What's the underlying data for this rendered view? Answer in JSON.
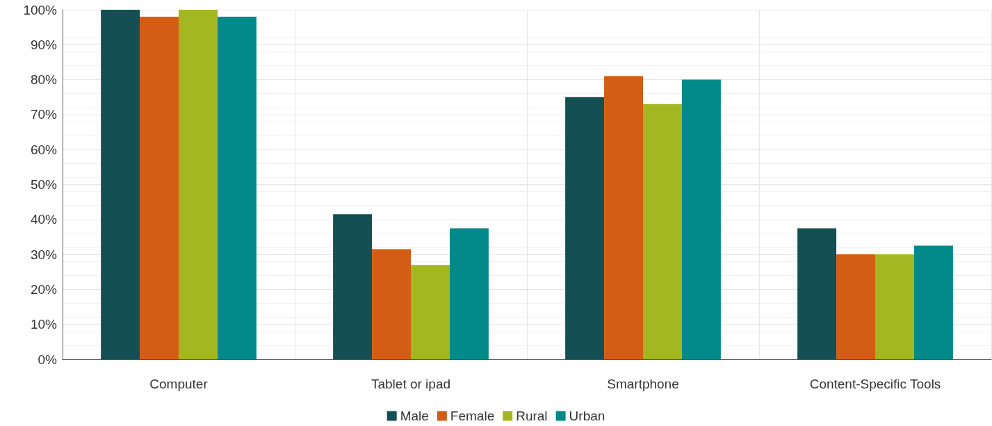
{
  "chart_data": {
    "type": "bar",
    "categories": [
      "Computer",
      "Tablet or ipad",
      "Smartphone",
      "Content-Specific Tools"
    ],
    "series": [
      {
        "name": "Male",
        "color": "#134f53",
        "values": [
          100,
          41.5,
          75,
          37.5
        ]
      },
      {
        "name": "Female",
        "color": "#d45d15",
        "values": [
          98,
          31.5,
          81,
          30
        ]
      },
      {
        "name": "Rural",
        "color": "#a2b721",
        "values": [
          100,
          27,
          73,
          30
        ]
      },
      {
        "name": "Urban",
        "color": "#028a8b",
        "values": [
          98,
          37.5,
          80,
          32.5
        ]
      }
    ],
    "ylim": [
      0,
      100
    ],
    "yticks": [
      {
        "value": 0,
        "label": "0%"
      },
      {
        "value": 10,
        "label": "10%"
      },
      {
        "value": 20,
        "label": "20%"
      },
      {
        "value": 30,
        "label": "30%"
      },
      {
        "value": 40,
        "label": "40%"
      },
      {
        "value": 50,
        "label": "50%"
      },
      {
        "value": 60,
        "label": "60%"
      },
      {
        "value": 70,
        "label": "70%"
      },
      {
        "value": 80,
        "label": "80%"
      },
      {
        "value": 90,
        "label": "90%"
      },
      {
        "value": 100,
        "label": "100%"
      }
    ],
    "grid": true,
    "legend": "bottom"
  }
}
